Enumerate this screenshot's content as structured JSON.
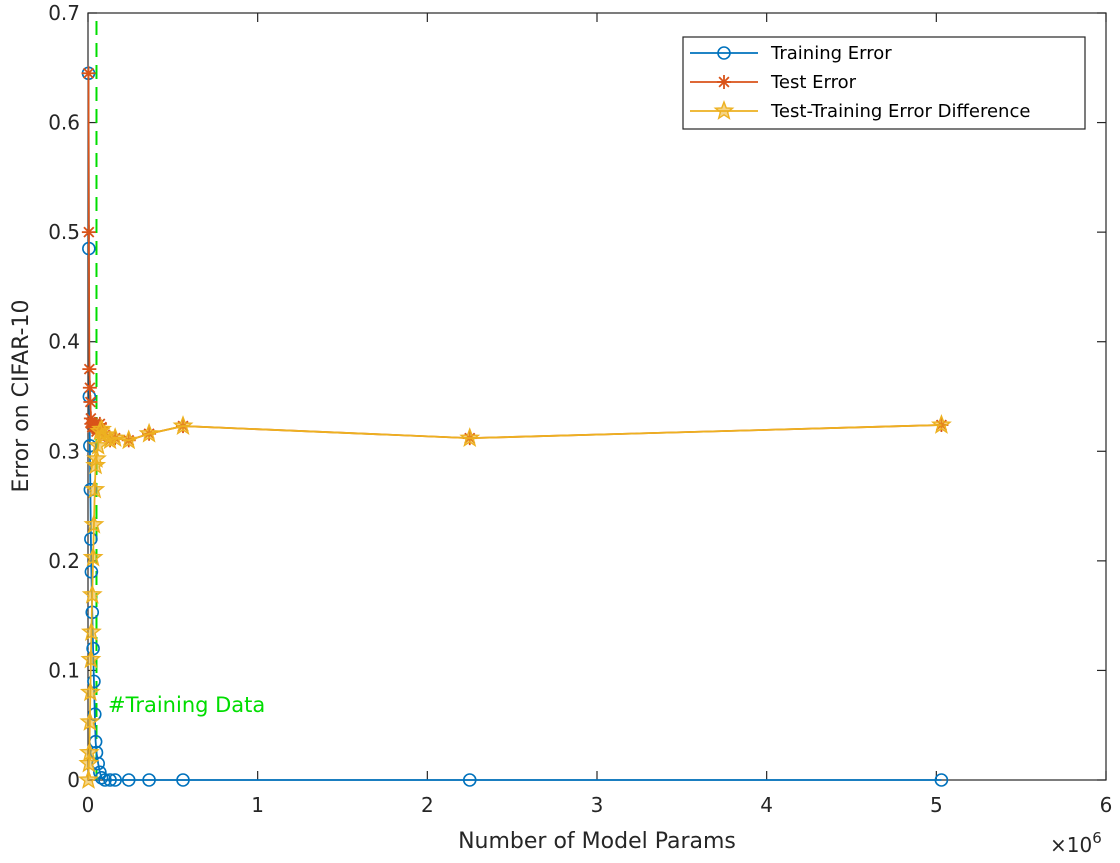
{
  "chart_data": {
    "type": "line",
    "title": "",
    "xlabel": "Number of Model Params",
    "ylabel": "Error on CIFAR-10",
    "x_exponent_label": "×10",
    "x_exponent_power": "6",
    "xlim": [
      0,
      6
    ],
    "ylim": [
      0,
      0.7
    ],
    "x_ticks": [
      0,
      1,
      2,
      3,
      4,
      5,
      6
    ],
    "y_ticks": [
      0,
      0.1,
      0.2,
      0.3,
      0.4,
      0.5,
      0.6,
      0.7
    ],
    "x_tick_labels": [
      "0",
      "1",
      "2",
      "3",
      "4",
      "5",
      "6"
    ],
    "y_tick_labels": [
      "0",
      "0.1",
      "0.2",
      "0.3",
      "0.4",
      "0.5",
      "0.6",
      "0.7"
    ],
    "grid": false,
    "legend_position": "top-right",
    "vertical_line": {
      "x": 0.05,
      "label": "#Training Data",
      "color": "#00dd00"
    },
    "series": [
      {
        "name": "Training Error",
        "color": "#0072bd",
        "marker": "circle",
        "x": [
          0.003,
          0.005,
          0.008,
          0.011,
          0.014,
          0.017,
          0.02,
          0.025,
          0.03,
          0.035,
          0.04,
          0.045,
          0.05,
          0.06,
          0.07,
          0.08,
          0.1,
          0.13,
          0.16,
          0.24,
          0.36,
          0.56,
          2.25,
          5.03
        ],
        "y": [
          0.645,
          0.485,
          0.35,
          0.305,
          0.265,
          0.22,
          0.19,
          0.153,
          0.12,
          0.09,
          0.06,
          0.035,
          0.025,
          0.015,
          0.007,
          0.002,
          0.0,
          0.0,
          0.0,
          0.0,
          0.0,
          0.0,
          0.0,
          0.0
        ]
      },
      {
        "name": "Test Error",
        "color": "#d95319",
        "marker": "asterisk",
        "x": [
          0.003,
          0.005,
          0.008,
          0.011,
          0.014,
          0.017,
          0.02,
          0.025,
          0.03,
          0.035,
          0.04,
          0.045,
          0.05,
          0.06,
          0.07,
          0.08,
          0.1,
          0.13,
          0.16,
          0.24,
          0.36,
          0.56,
          2.25,
          5.03
        ],
        "y": [
          0.645,
          0.5,
          0.375,
          0.358,
          0.345,
          0.33,
          0.325,
          0.322,
          0.323,
          0.323,
          0.325,
          0.322,
          0.318,
          0.32,
          0.325,
          0.322,
          0.315,
          0.31,
          0.312,
          0.31,
          0.316,
          0.323,
          0.312,
          0.324
        ]
      },
      {
        "name": "Test-Training Error Difference",
        "color": "#edb120",
        "marker": "star",
        "x": [
          0.003,
          0.005,
          0.008,
          0.011,
          0.014,
          0.017,
          0.02,
          0.025,
          0.03,
          0.035,
          0.04,
          0.045,
          0.05,
          0.06,
          0.07,
          0.08,
          0.1,
          0.13,
          0.16,
          0.24,
          0.36,
          0.56,
          2.25,
          5.03
        ],
        "y": [
          0.0,
          0.015,
          0.025,
          0.053,
          0.08,
          0.11,
          0.135,
          0.169,
          0.203,
          0.233,
          0.265,
          0.287,
          0.293,
          0.305,
          0.318,
          0.32,
          0.315,
          0.31,
          0.312,
          0.31,
          0.316,
          0.323,
          0.312,
          0.324
        ]
      }
    ]
  }
}
